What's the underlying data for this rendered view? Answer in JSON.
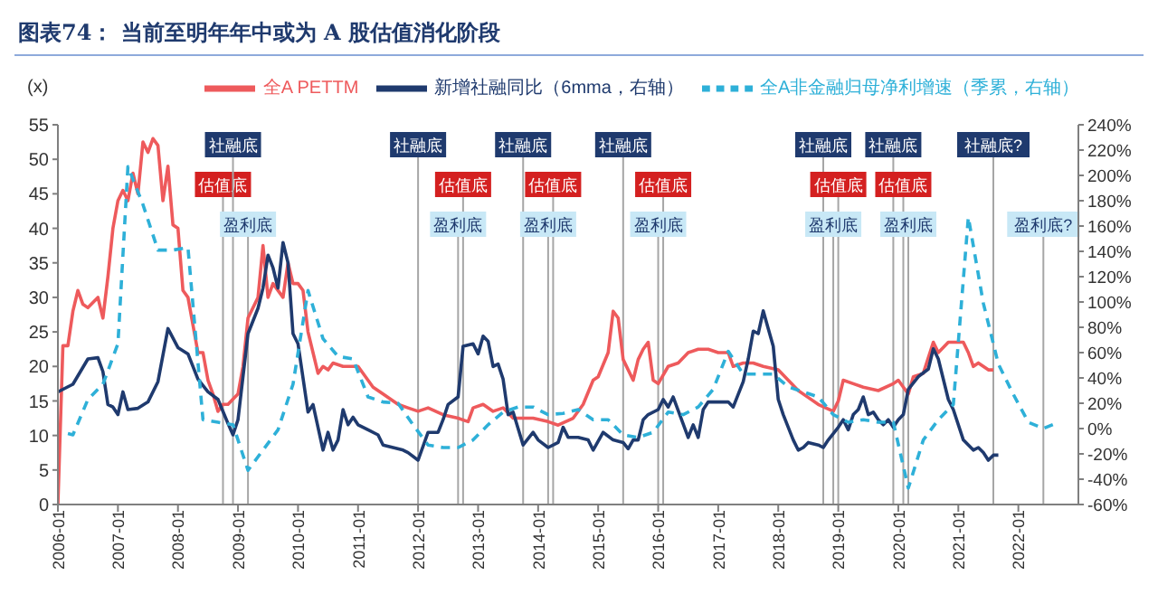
{
  "chart_data": {
    "type": "line",
    "title": "图表74：  当前至明年年中或为 A 股估值消化阶段",
    "ylabel": "(x)",
    "legend": "top",
    "xlim": [
      "2006-01",
      "2023-01"
    ],
    "xticks": [
      "2006-01",
      "2007-01",
      "2008-01",
      "2009-01",
      "2010-01",
      "2011-01",
      "2012-01",
      "2013-01",
      "2014-01",
      "2015-01",
      "2016-01",
      "2017-01",
      "2018-01",
      "2019-01",
      "2020-01",
      "2021-01",
      "2022-01"
    ],
    "ylim": [
      0,
      55
    ],
    "yticks": [
      0,
      5,
      10,
      15,
      20,
      25,
      30,
      35,
      40,
      45,
      50,
      55
    ],
    "y2lim": [
      -60,
      240
    ],
    "y2ticks": [
      {
        "value": -60,
        "label": "-60%"
      },
      {
        "value": -40,
        "label": "-40%"
      },
      {
        "value": -20,
        "label": "-20%"
      },
      {
        "value": 0,
        "label": "0%"
      },
      {
        "value": 20,
        "label": "20%"
      },
      {
        "value": 40,
        "label": "40%"
      },
      {
        "value": 60,
        "label": "60%"
      },
      {
        "value": 80,
        "label": "80%"
      },
      {
        "value": 100,
        "label": "100%"
      },
      {
        "value": 120,
        "label": "120%"
      },
      {
        "value": 140,
        "label": "140%"
      },
      {
        "value": 160,
        "label": "160%"
      },
      {
        "value": 180,
        "label": "180%"
      },
      {
        "value": 200,
        "label": "200%"
      },
      {
        "value": 220,
        "label": "220%"
      },
      {
        "value": 240,
        "label": "240%"
      }
    ],
    "grid": false,
    "marker": "none",
    "series": [
      {
        "name": "全A PETTM",
        "color": "#ee5a5c",
        "line_style": "solid",
        "x": [
          "2006-01",
          "2006-02",
          "2006-03",
          "2006-04",
          "2006-05",
          "2006-06",
          "2006-07",
          "2006-09",
          "2006-10",
          "2006-11",
          "2006-12",
          "2007-01",
          "2007-02",
          "2007-03",
          "2007-04",
          "2007-05",
          "2007-06",
          "2007-07",
          "2007-08",
          "2007-09",
          "2007-10",
          "2007-11",
          "2007-12",
          "2008-01",
          "2008-02",
          "2008-03",
          "2008-05",
          "2008-06",
          "2008-07",
          "2008-08",
          "2008-09",
          "2008-10",
          "2008-11",
          "2009-01",
          "2009-02",
          "2009-03",
          "2009-05",
          "2009-06",
          "2009-07",
          "2009-08",
          "2009-10",
          "2009-11",
          "2009-12",
          "2010-01",
          "2010-02",
          "2010-03",
          "2010-04",
          "2010-05",
          "2010-06",
          "2010-07",
          "2010-08",
          "2010-10",
          "2010-12",
          "2011-01",
          "2011-04",
          "2011-06",
          "2011-09",
          "2011-11",
          "2012-01",
          "2012-03",
          "2012-06",
          "2012-09",
          "2012-11",
          "2012-12",
          "2013-02",
          "2013-04",
          "2013-06",
          "2013-08",
          "2013-10",
          "2013-12",
          "2014-03",
          "2014-05",
          "2014-08",
          "2014-10",
          "2014-12",
          "2015-01",
          "2015-03",
          "2015-04",
          "2015-05",
          "2015-06",
          "2015-08",
          "2015-09",
          "2015-10",
          "2015-11",
          "2015-12",
          "2016-01",
          "2016-03",
          "2016-05",
          "2016-07",
          "2016-09",
          "2016-11",
          "2017-01",
          "2017-03",
          "2017-04",
          "2017-06",
          "2017-08",
          "2017-10",
          "2018-01",
          "2018-03",
          "2018-05",
          "2018-07",
          "2018-09",
          "2018-12",
          "2019-01",
          "2019-02",
          "2019-04",
          "2019-06",
          "2019-09",
          "2019-12",
          "2020-01",
          "2020-03",
          "2020-04",
          "2020-06",
          "2020-08",
          "2020-09",
          "2020-11",
          "2021-02",
          "2021-03",
          "2021-04",
          "2021-05",
          "2021-07",
          "2021-08"
        ],
        "values": [
          0,
          23,
          23,
          28,
          31,
          29,
          28.5,
          30,
          27,
          33,
          40,
          44,
          45.5,
          44,
          48,
          45,
          52.5,
          51,
          53,
          52,
          44,
          49,
          40.5,
          40,
          31,
          30,
          22,
          22,
          18,
          16,
          13.5,
          14.5,
          14.5,
          16,
          20,
          27,
          30,
          37.5,
          30,
          32,
          30,
          35,
          32,
          32,
          31,
          25,
          22,
          19,
          20,
          19.5,
          20.5,
          20,
          20,
          20,
          17,
          16,
          14.5,
          14,
          13.5,
          14,
          13,
          12.5,
          12,
          14,
          14.5,
          13.5,
          14,
          12.5,
          12.5,
          12.5,
          12,
          11.5,
          12.5,
          14.5,
          18,
          18.5,
          22,
          28,
          27,
          21,
          18,
          21,
          22.5,
          23.5,
          18,
          17.5,
          20,
          20.5,
          22,
          22.5,
          22.5,
          22,
          22,
          20,
          20.5,
          20.5,
          20,
          19.5,
          18,
          16.5,
          15.5,
          14.5,
          13.5,
          15,
          18,
          17.5,
          17,
          16.5,
          17.5,
          18,
          16,
          18.5,
          19,
          23.5,
          22,
          23.5,
          23.5,
          22,
          20,
          20.5,
          19.5,
          19.5
        ]
      },
      {
        "name": "新增社融同比（6mma，右轴）",
        "color": "#1f3a6e",
        "axis": "y2",
        "line_style": "solid",
        "x": [
          "2006-01",
          "2006-04",
          "2006-07",
          "2006-09",
          "2006-10",
          "2006-11",
          "2006-12",
          "2007-01",
          "2007-02",
          "2007-03",
          "2007-05",
          "2007-07",
          "2007-09",
          "2007-11",
          "2008-01",
          "2008-03",
          "2008-05",
          "2008-07",
          "2008-09",
          "2008-11",
          "2008-12",
          "2009-01",
          "2009-03",
          "2009-05",
          "2009-06",
          "2009-07",
          "2009-08",
          "2009-09",
          "2009-10",
          "2009-11",
          "2009-12",
          "2010-01",
          "2010-03",
          "2010-04",
          "2010-06",
          "2010-07",
          "2010-08",
          "2010-09",
          "2010-10",
          "2010-11",
          "2010-12",
          "2011-01",
          "2011-03",
          "2011-05",
          "2011-06",
          "2011-08",
          "2011-10",
          "2011-11",
          "2012-01",
          "2012-03",
          "2012-05",
          "2012-06",
          "2012-07",
          "2012-09",
          "2012-10",
          "2012-12",
          "2013-01",
          "2013-02",
          "2013-03",
          "2013-04",
          "2013-05",
          "2013-06",
          "2013-07",
          "2013-08",
          "2013-10",
          "2013-12",
          "2014-01",
          "2014-03",
          "2014-05",
          "2014-06",
          "2014-07",
          "2014-09",
          "2014-11",
          "2014-12",
          "2015-02",
          "2015-04",
          "2015-06",
          "2015-07",
          "2015-08",
          "2015-09",
          "2015-10",
          "2015-11",
          "2016-01",
          "2016-02",
          "2016-03",
          "2016-04",
          "2016-07",
          "2016-08",
          "2016-09",
          "2016-10",
          "2016-11",
          "2017-01",
          "2017-03",
          "2017-04",
          "2017-06",
          "2017-07",
          "2017-08",
          "2017-09",
          "2017-10",
          "2017-11",
          "2017-12",
          "2018-01",
          "2018-02",
          "2018-04",
          "2018-05",
          "2018-06",
          "2018-07",
          "2018-09",
          "2018-10",
          "2018-11",
          "2019-01",
          "2019-02",
          "2019-03",
          "2019-04",
          "2019-05",
          "2019-06",
          "2019-07",
          "2019-08",
          "2019-09",
          "2019-10",
          "2019-11",
          "2019-12",
          "2020-01",
          "2020-02",
          "2020-03",
          "2020-05",
          "2020-07",
          "2020-08",
          "2020-09",
          "2020-11",
          "2020-12",
          "2021-02",
          "2021-04",
          "2021-05",
          "2021-06",
          "2021-07",
          "2021-08",
          "2021-09"
        ],
        "values": [
          29,
          35,
          55,
          56,
          45,
          19,
          17,
          11,
          29,
          15,
          16,
          21,
          37,
          79,
          64,
          59,
          39,
          29,
          23,
          4,
          -5,
          7,
          75,
          95,
          111,
          137,
          127,
          111,
          147,
          131,
          75,
          67,
          13,
          19,
          -17,
          -3,
          -17,
          -9,
          15,
          3,
          9,
          3,
          -1,
          -5,
          -13,
          -15,
          -17,
          -19,
          -25,
          -3,
          -3,
          7,
          19,
          25,
          65,
          67,
          59,
          73,
          69,
          49,
          51,
          39,
          11,
          13,
          -13,
          -3,
          -9,
          -15,
          -11,
          1,
          -7,
          -7,
          -9,
          -17,
          -3,
          -9,
          -11,
          -16,
          -9,
          -9,
          7,
          11,
          15,
          23,
          17,
          25,
          -7,
          3,
          -7,
          15,
          21,
          21,
          21,
          17,
          37,
          55,
          77,
          75,
          93,
          79,
          65,
          23,
          11,
          -9,
          -17,
          -15,
          -11,
          -13,
          -15,
          -9,
          1,
          7,
          -1,
          11,
          15,
          25,
          11,
          13,
          7,
          3,
          7,
          1,
          7,
          11,
          31,
          41,
          47,
          63,
          55,
          23,
          15,
          -9,
          -17,
          -15,
          -19,
          -25,
          -21,
          -21
        ]
      },
      {
        "name": "全A非金融归母净利增速（季累，右轴）",
        "color": "#2eb0d8",
        "axis": "y2",
        "line_style": "dashed",
        "x": [
          "2006-03",
          "2006-04",
          "2006-07",
          "2006-10",
          "2007-01",
          "2007-03",
          "2007-06",
          "2007-09",
          "2007-12",
          "2008-03",
          "2008-06",
          "2008-09",
          "2008-12",
          "2009-03",
          "2009-06",
          "2009-09",
          "2009-12",
          "2010-03",
          "2010-06",
          "2010-09",
          "2010-12",
          "2011-03",
          "2011-06",
          "2011-09",
          "2011-12",
          "2012-03",
          "2012-06",
          "2012-09",
          "2012-12",
          "2013-03",
          "2013-06",
          "2013-09",
          "2013-12",
          "2014-03",
          "2014-06",
          "2014-09",
          "2014-12",
          "2015-03",
          "2015-06",
          "2015-09",
          "2015-12",
          "2016-03",
          "2016-06",
          "2016-09",
          "2016-12",
          "2017-03",
          "2017-06",
          "2017-09",
          "2017-12",
          "2018-03",
          "2018-06",
          "2018-09",
          "2018-12",
          "2019-03",
          "2019-06",
          "2019-09",
          "2019-12",
          "2020-03",
          "2020-06",
          "2020-09",
          "2020-12",
          "2021-03",
          "2021-06",
          "2021-09",
          "2021-12",
          "2022-03",
          "2022-06",
          "2022-09"
        ],
        "values": [
          -4,
          -5,
          23,
          35,
          67,
          207,
          177,
          141,
          141,
          143,
          7,
          5,
          3,
          -33,
          -17,
          -1,
          35,
          109,
          71,
          57,
          55,
          25,
          21,
          20,
          3,
          -13,
          -15,
          -15,
          -9,
          3,
          13,
          17,
          17,
          11,
          12,
          15,
          7,
          7,
          -5,
          -7,
          -3,
          13,
          11,
          17,
          31,
          61,
          43,
          43,
          43,
          33,
          29,
          25,
          11,
          5,
          7,
          5,
          5,
          -47,
          -9,
          7,
          19,
          167,
          99,
          51,
          27,
          5,
          0,
          5
        ]
      }
    ],
    "ref_lines": [
      {
        "axis": "x",
        "value": "2008-10",
        "label": "估值底",
        "color": "#a6a6a6"
      },
      {
        "axis": "x",
        "value": "2008-12",
        "label": "社融底",
        "color": "#a6a6a6"
      },
      {
        "axis": "x",
        "value": "2009-03",
        "label": "盈利底",
        "color": "#a6a6a6"
      },
      {
        "axis": "x",
        "value": "2012-01",
        "label": "社融底",
        "color": "#a6a6a6"
      },
      {
        "axis": "x",
        "value": "2012-10",
        "label": "估值底",
        "color": "#a6a6a6"
      },
      {
        "axis": "x",
        "value": "2012-09",
        "label": "盈利底",
        "color": "#a6a6a6"
      },
      {
        "axis": "x",
        "value": "2013-10",
        "label": "社融底",
        "color": "#a6a6a6"
      },
      {
        "axis": "x",
        "value": "2014-04",
        "label": "估值底",
        "color": "#a6a6a6"
      },
      {
        "axis": "x",
        "value": "2014-03",
        "label": "盈利底",
        "color": "#a6a6a6"
      },
      {
        "axis": "x",
        "value": "2015-06",
        "label": "社融底",
        "color": "#a6a6a6"
      },
      {
        "axis": "x",
        "value": "2016-02",
        "label": "估值底",
        "color": "#a6a6a6"
      },
      {
        "axis": "x",
        "value": "2016-01",
        "label": "盈利底",
        "color": "#a6a6a6"
      },
      {
        "axis": "x",
        "value": "2018-10",
        "label": "社融底",
        "color": "#a6a6a6"
      },
      {
        "axis": "x",
        "value": "2019-01",
        "label": "估值底",
        "color": "#a6a6a6"
      },
      {
        "axis": "x",
        "value": "2018-12",
        "label": "盈利底",
        "color": "#a6a6a6"
      },
      {
        "axis": "x",
        "value": "2019-12",
        "label": "社融底",
        "color": "#a6a6a6"
      },
      {
        "axis": "x",
        "value": "2020-02",
        "label": "估值底",
        "color": "#a6a6a6"
      },
      {
        "axis": "x",
        "value": "2020-03",
        "label": "盈利底",
        "color": "#a6a6a6"
      },
      {
        "axis": "x",
        "value": "2021-08",
        "label": "社融底?",
        "color": "#a6a6a6"
      },
      {
        "axis": "x",
        "value": "2022-06",
        "label": "盈利底?",
        "color": "#a6a6a6"
      }
    ]
  }
}
